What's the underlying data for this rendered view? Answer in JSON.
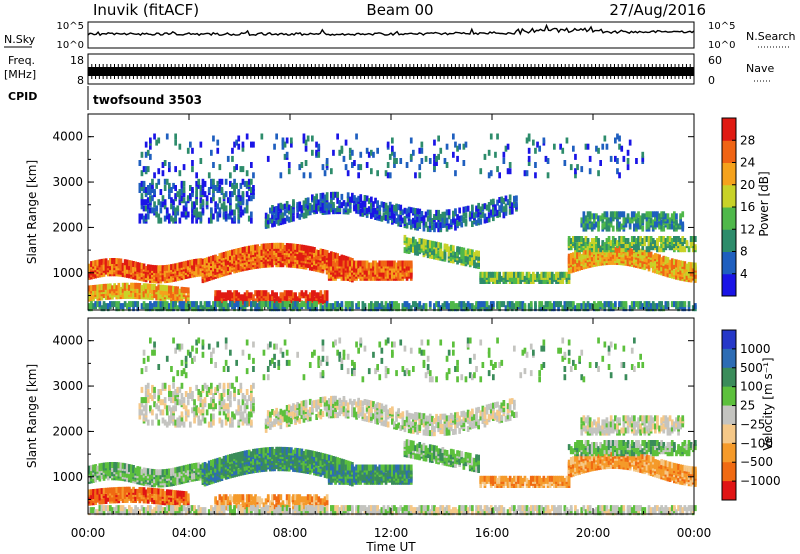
{
  "header": {
    "station": "Inuvik (fitACF)",
    "beam": "Beam 00",
    "date": "27/Aug/2016"
  },
  "strips": {
    "nsky_label": "N.Sky",
    "nsky_ticks": [
      "10^5",
      "10^0"
    ],
    "nsearch_label": "N.Search",
    "nsearch_ticks": [
      "10^5",
      "10^0"
    ],
    "freq_label_1": "Freq.",
    "freq_label_2": "[MHz]",
    "freq_ticks": [
      "18",
      "8"
    ],
    "nave_label": "Nave",
    "nave_ticks": [
      "60",
      "0"
    ],
    "cpid_label": "CPID",
    "cpid_value": "twofsound 3503"
  },
  "chart_data": [
    {
      "type": "heatmap",
      "name": "power",
      "ylabel": "Slant Range [km]",
      "xlabel": "",
      "x_ticks": [
        "00:00",
        "04:00",
        "08:00",
        "12:00",
        "16:00",
        "20:00",
        "00:00"
      ],
      "y_ticks": [
        1000,
        2000,
        3000,
        4000
      ],
      "xlim": [
        0,
        24
      ],
      "ylim": [
        180,
        4500
      ],
      "colorbar": {
        "label": "Power [dB]",
        "ticks": [
          "4",
          "8",
          "12",
          "16",
          "20",
          "24",
          "28"
        ],
        "colors": [
          "#1a14e6",
          "#1f5fbf",
          "#2d8c6b",
          "#4fb84a",
          "#c8d228",
          "#f5a21c",
          "#f06414",
          "#e01a12"
        ]
      }
    },
    {
      "type": "heatmap",
      "name": "velocity",
      "ylabel": "Slant Range [km]",
      "xlabel": "Time UT",
      "x_ticks": [
        "00:00",
        "04:00",
        "08:00",
        "12:00",
        "16:00",
        "20:00",
        "00:00"
      ],
      "y_ticks": [
        1000,
        2000,
        3000,
        4000
      ],
      "xlim": [
        0,
        24
      ],
      "ylim": [
        180,
        4500
      ],
      "colorbar": {
        "label": "Velocity [m s⁻¹]",
        "ticks": [
          "1000",
          "500",
          "100",
          "25",
          "−25",
          "−100",
          "−500",
          "−1000"
        ],
        "colors": [
          "#2638c8",
          "#2d6cb4",
          "#3a8c5a",
          "#5cc03c",
          "#c4c4c0",
          "#f5c888",
          "#f59a2a",
          "#f06a12",
          "#e01414"
        ]
      }
    }
  ]
}
